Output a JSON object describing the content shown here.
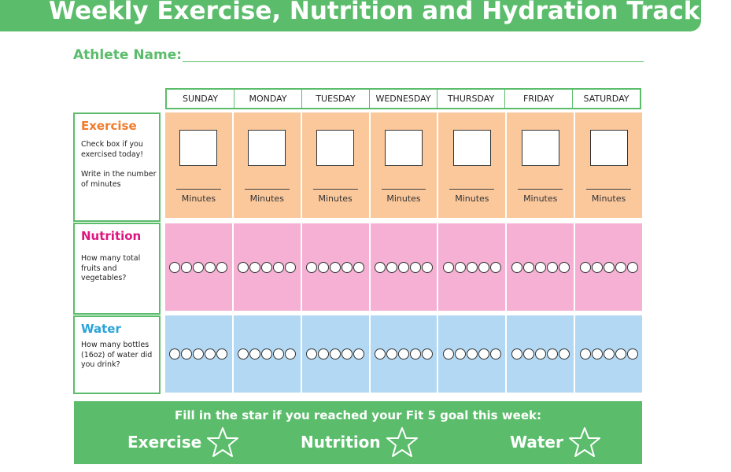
{
  "header": {
    "title": "Weekly Exercise, Nutrition and Hydration Tracking"
  },
  "athlete": {
    "label": "Athlete Name:"
  },
  "days": [
    "SUNDAY",
    "MONDAY",
    "TUESDAY",
    "WEDNESDAY",
    "THURSDAY",
    "FRIDAY",
    "SATURDAY"
  ],
  "sections": {
    "exercise": {
      "title": "Exercise",
      "desc1": "Check box if you exercised today!",
      "desc2": "Write in the number of minutes",
      "minutes_label": "Minutes",
      "color": "#f07b2a"
    },
    "nutrition": {
      "title": "Nutrition",
      "desc": "How many total fruits and vegetables?",
      "circles_per_day": 5,
      "color": "#e0157f"
    },
    "water": {
      "title": "Water",
      "desc": "How many bottles (16oz) of water did you drink?",
      "circles_per_day": 5,
      "color": "#2aa3d8"
    }
  },
  "footer": {
    "prompt": "Fill in the star if you reached your Fit 5 goal this week:",
    "goals": [
      "Exercise",
      "Nutrition",
      "Water"
    ]
  },
  "colors": {
    "accent": "#5bbd6b",
    "exercise_bg": "#fbc89c",
    "nutrition_bg": "#f5b0d3",
    "water_bg": "#b2d8f3"
  }
}
